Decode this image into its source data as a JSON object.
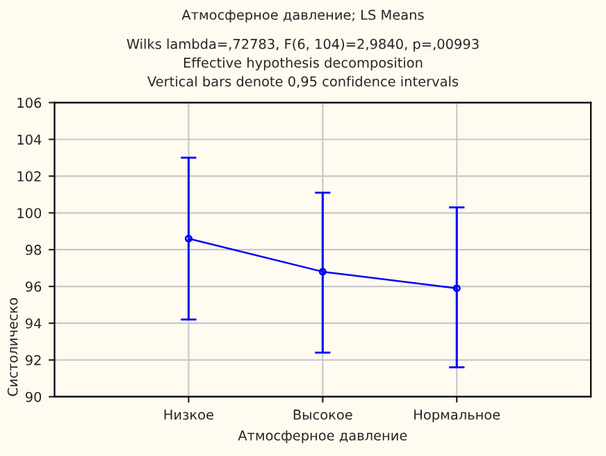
{
  "chart_data": {
    "type": "line",
    "title": "Атмосферное давление; LS Means",
    "subtitle": "Wilks lambda=,72783, F(6, 104)=2,9840, p=,00993\nEffective hypothesis decomposition\nVertical bars denote 0,95 confidence intervals",
    "xlabel": "Атмосферное давление",
    "ylabel": "Систолическо",
    "categories": [
      "Низкое",
      "Высокое",
      "Нормальное"
    ],
    "series": [
      {
        "color": "#0000ff",
        "values": [
          98.6,
          96.8,
          95.9
        ],
        "errors": [
          [
            94.2,
            103.0
          ],
          [
            92.4,
            101.1
          ],
          [
            91.6,
            100.3
          ]
        ]
      }
    ],
    "ylim": [
      90,
      106
    ],
    "yticks": [
      90,
      92,
      94,
      96,
      98,
      100,
      102,
      104,
      106
    ],
    "grid": true,
    "marker": "circle",
    "line_style": "solid"
  }
}
